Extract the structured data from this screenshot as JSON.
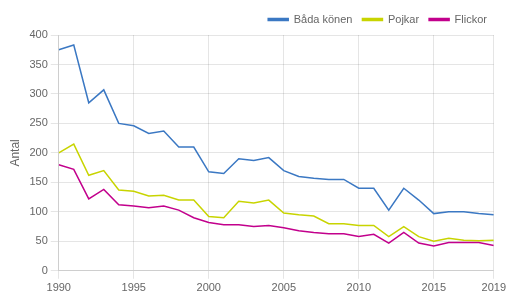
{
  "chart_data": {
    "type": "line",
    "ylabel": "Antal",
    "x": [
      1990,
      1991,
      1992,
      1993,
      1994,
      1995,
      1996,
      1997,
      1998,
      1999,
      2000,
      2001,
      2002,
      2003,
      2004,
      2005,
      2006,
      2007,
      2008,
      2009,
      2010,
      2011,
      2012,
      2013,
      2014,
      2015,
      2016,
      2017,
      2018,
      2019
    ],
    "series": [
      {
        "name": "Båda könen",
        "color": "#3b78c3",
        "values": [
          375,
          383,
          285,
          307,
          250,
          246,
          233,
          237,
          210,
          210,
          168,
          165,
          190,
          187,
          192,
          170,
          160,
          157,
          155,
          155,
          140,
          140,
          103,
          140,
          120,
          97,
          100,
          100,
          97,
          95
        ]
      },
      {
        "name": "Pojkar",
        "color": "#c8d400",
        "values": [
          200,
          215,
          162,
          170,
          137,
          135,
          127,
          128,
          120,
          120,
          92,
          90,
          118,
          115,
          120,
          98,
          95,
          93,
          80,
          80,
          77,
          77,
          58,
          75,
          58,
          50,
          55,
          52,
          51,
          52
        ]
      },
      {
        "name": "Flickor",
        "color": "#c2008c",
        "values": [
          180,
          172,
          122,
          138,
          112,
          110,
          107,
          110,
          103,
          90,
          82,
          78,
          78,
          75,
          77,
          73,
          68,
          65,
          63,
          63,
          58,
          62,
          47,
          65,
          47,
          42,
          48,
          48,
          48,
          43
        ]
      }
    ],
    "xlim": [
      1990,
      2019
    ],
    "xticks": [
      1990,
      1995,
      2000,
      2005,
      2010,
      2015,
      2019
    ],
    "ylim": [
      0,
      400
    ],
    "yticks": [
      0,
      50,
      100,
      150,
      200,
      250,
      300,
      350,
      400
    ],
    "grid": true,
    "legend": "upper right"
  }
}
